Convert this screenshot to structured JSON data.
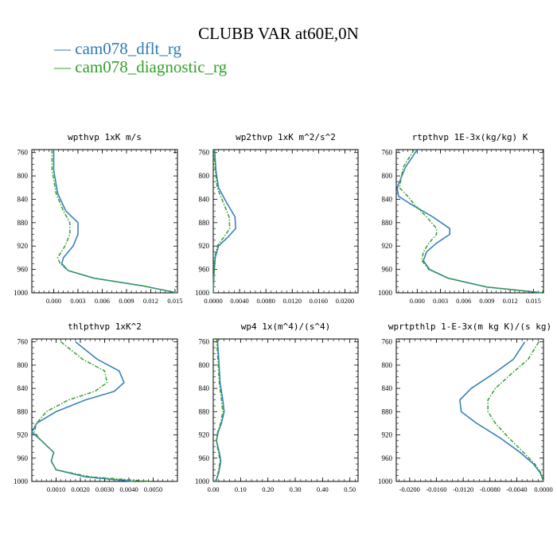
{
  "figure": {
    "title": "CLUBB VAR at60E,0N",
    "legend": [
      {
        "name": "cam078_dflt_rg",
        "color": "#2c7bb6"
      },
      {
        "name": "cam078_diagnostic_rg",
        "color": "#33a02c"
      }
    ]
  },
  "chart_data": [
    {
      "type": "line",
      "title": "wpthvp  1xK m/s",
      "xlim": [
        -0.0027,
        0.0153
      ],
      "xticks": [
        "0.000",
        "0.003",
        "0.006",
        "0.009",
        "0.012",
        "0.015"
      ],
      "xtick_values": [
        0,
        0.003,
        0.006,
        0.009,
        0.012,
        0.015
      ],
      "ylim": [
        1000,
        755
      ],
      "yticks": [
        "760",
        "800",
        "840",
        "880",
        "920",
        "960",
        "1000"
      ],
      "ytick_values": [
        760,
        800,
        840,
        880,
        920,
        960,
        1000
      ],
      "series": [
        {
          "name": "cam078_dflt_rg",
          "x": [
            0.0,
            0.0,
            0.0005,
            0.0015,
            0.003,
            0.003,
            0.0024,
            0.0012,
            0.001,
            0.0018,
            0.005,
            0.011,
            0.0152
          ],
          "y": [
            755,
            790,
            830,
            860,
            880,
            900,
            920,
            940,
            950,
            962,
            975,
            988,
            1000
          ]
        },
        {
          "name": "cam078_diagnostic_rg",
          "x": [
            -0.0002,
            -0.0002,
            0.0003,
            0.0012,
            0.002,
            0.002,
            0.0014,
            0.0005,
            0.0008,
            0.0018,
            0.005,
            0.011,
            0.0152
          ],
          "y": [
            755,
            790,
            830,
            860,
            880,
            900,
            920,
            940,
            950,
            962,
            975,
            988,
            1000
          ]
        }
      ]
    },
    {
      "type": "line",
      "title": "wp2thvp  1xK m^2/s^2",
      "xlim": [
        0,
        0.022
      ],
      "xticks": [
        "0.0000",
        "0.0040",
        "0.0080",
        "0.0120",
        "0.0160",
        "0.0200"
      ],
      "xtick_values": [
        0,
        0.004,
        0.008,
        0.012,
        0.016,
        0.02
      ],
      "ylim": [
        1000,
        755
      ],
      "yticks": [
        "760",
        "800",
        "840",
        "880",
        "920",
        "960",
        "1000"
      ],
      "ytick_values": [
        760,
        800,
        840,
        880,
        920,
        960,
        1000
      ],
      "series": [
        {
          "name": "cam078_dflt_rg",
          "x": [
            0.0002,
            0.0004,
            0.0008,
            0.002,
            0.0033,
            0.0034,
            0.0022,
            0.0008,
            0.0003,
            0.0001,
            0.0
          ],
          "y": [
            755,
            790,
            820,
            845,
            870,
            890,
            905,
            920,
            940,
            970,
            1000
          ]
        },
        {
          "name": "cam078_diagnostic_rg",
          "x": [
            0.0001,
            0.0003,
            0.0006,
            0.0015,
            0.0024,
            0.0025,
            0.0016,
            0.0006,
            0.0002,
            0.0001,
            0.0
          ],
          "y": [
            755,
            790,
            820,
            845,
            870,
            890,
            905,
            920,
            940,
            970,
            1000
          ]
        }
      ]
    },
    {
      "type": "line",
      "title": "rtpthvp  1E-3x(kg/kg) K",
      "xlim": [
        -0.0027,
        0.0163
      ],
      "xticks": [
        "0.000",
        "0.003",
        "0.006",
        "0.009",
        "0.012",
        "0.015"
      ],
      "xtick_values": [
        0,
        0.003,
        0.006,
        0.009,
        0.012,
        0.015
      ],
      "ylim": [
        1000,
        755
      ],
      "yticks": [
        "760",
        "800",
        "840",
        "880",
        "920",
        "960",
        "1000"
      ],
      "ytick_values": [
        760,
        800,
        840,
        880,
        920,
        960,
        1000
      ],
      "series": [
        {
          "name": "cam078_dflt_rg",
          "x": [
            0.0,
            -0.0015,
            -0.0026,
            -0.0024,
            -0.0006,
            0.002,
            0.0042,
            0.0042,
            0.0025,
            0.0012,
            0.0008,
            0.0016,
            0.004,
            0.009,
            0.0162
          ],
          "y": [
            755,
            785,
            820,
            835,
            850,
            870,
            890,
            900,
            915,
            930,
            945,
            960,
            975,
            990,
            1000
          ]
        },
        {
          "name": "cam078_diagnostic_rg",
          "x": [
            -0.0004,
            -0.0018,
            -0.0023,
            -0.0012,
            -0.0003,
            0.0012,
            0.0025,
            0.0025,
            0.0015,
            0.0008,
            0.0006,
            0.0015,
            0.004,
            0.009,
            0.0162
          ],
          "y": [
            755,
            785,
            820,
            835,
            850,
            870,
            890,
            900,
            915,
            930,
            945,
            960,
            975,
            990,
            1000
          ]
        }
      ]
    },
    {
      "type": "line",
      "title": "thlpthvp  1xK^2",
      "xlim": [
        0,
        0.006
      ],
      "xticks": [
        "0.0010",
        "0.0020",
        "0.0030",
        "0.0040",
        "0.0050"
      ],
      "xtick_values": [
        0.001,
        0.002,
        0.003,
        0.004,
        0.005
      ],
      "ylim": [
        1000,
        755
      ],
      "yticks": [
        "760",
        "800",
        "840",
        "880",
        "920",
        "960",
        "1000"
      ],
      "ytick_values": [
        760,
        800,
        840,
        880,
        920,
        960,
        1000
      ],
      "series": [
        {
          "name": "cam078_dflt_rg",
          "x": [
            0.0018,
            0.0027,
            0.0036,
            0.0038,
            0.0034,
            0.0022,
            0.001,
            0.0002,
            0.0,
            0.0004,
            0.0009,
            0.0008,
            0.001,
            0.0022,
            0.0042
          ],
          "y": [
            760,
            790,
            810,
            830,
            845,
            860,
            880,
            900,
            915,
            930,
            950,
            965,
            980,
            992,
            1000
          ]
        },
        {
          "name": "cam078_diagnostic_rg",
          "x": [
            0.0012,
            0.0021,
            0.003,
            0.0031,
            0.0026,
            0.0015,
            0.0006,
            0.0002,
            0.0001,
            0.0004,
            0.0009,
            0.0008,
            0.001,
            0.0024,
            0.0049
          ],
          "y": [
            760,
            790,
            810,
            830,
            845,
            860,
            880,
            900,
            915,
            930,
            950,
            965,
            980,
            992,
            1000
          ]
        }
      ]
    },
    {
      "type": "line",
      "title": "wp4  1x(m^4)/(s^4)",
      "xlim": [
        0,
        0.53
      ],
      "xticks": [
        "0.00",
        "0.10",
        "0.20",
        "0.30",
        "0.40",
        "0.50"
      ],
      "xtick_values": [
        0,
        0.1,
        0.2,
        0.3,
        0.4,
        0.5
      ],
      "ylim": [
        1000,
        755
      ],
      "yticks": [
        "760",
        "800",
        "840",
        "880",
        "920",
        "960",
        "1000"
      ],
      "ytick_values": [
        760,
        800,
        840,
        880,
        920,
        960,
        1000
      ],
      "series": [
        {
          "name": "cam078_dflt_rg",
          "x": [
            0.015,
            0.02,
            0.025,
            0.035,
            0.04,
            0.03,
            0.018,
            0.012,
            0.022,
            0.028,
            0.02,
            0.01
          ],
          "y": [
            755,
            790,
            830,
            860,
            880,
            900,
            915,
            930,
            950,
            965,
            985,
            1000
          ]
        },
        {
          "name": "cam078_diagnostic_rg",
          "x": [
            0.012,
            0.017,
            0.022,
            0.03,
            0.035,
            0.027,
            0.016,
            0.011,
            0.019,
            0.025,
            0.018,
            0.008
          ],
          "y": [
            755,
            790,
            830,
            860,
            880,
            900,
            915,
            930,
            950,
            965,
            985,
            1000
          ]
        }
      ]
    },
    {
      "type": "line",
      "title": "wprtpthlp  1-E-3x(m kg K)/(s kg)",
      "xlim": [
        -0.022,
        0.0
      ],
      "xticks": [
        "-0.0200",
        "-0.0160",
        "-0.0120",
        "-0.0080",
        "-0.0040",
        "0.0000"
      ],
      "xtick_values": [
        -0.02,
        -0.016,
        -0.012,
        -0.008,
        -0.004,
        0.0
      ],
      "ylim": [
        1000,
        755
      ],
      "yticks": [
        "760",
        "800",
        "840",
        "880",
        "920",
        "960",
        "1000"
      ],
      "ytick_values": [
        760,
        800,
        840,
        880,
        920,
        960,
        1000
      ],
      "series": [
        {
          "name": "cam078_dflt_rg",
          "x": [
            -0.0028,
            -0.0045,
            -0.0075,
            -0.0108,
            -0.0125,
            -0.0123,
            -0.01,
            -0.0065,
            -0.0035,
            -0.0015,
            -0.0005,
            0.0
          ],
          "y": [
            760,
            790,
            815,
            840,
            860,
            880,
            900,
            925,
            950,
            970,
            985,
            1000
          ]
        },
        {
          "name": "cam078_diagnostic_rg",
          "x": [
            -0.0007,
            -0.0023,
            -0.0048,
            -0.0072,
            -0.0083,
            -0.0083,
            -0.0072,
            -0.0052,
            -0.003,
            -0.0013,
            -0.0004,
            0.0
          ],
          "y": [
            760,
            790,
            815,
            840,
            860,
            880,
            900,
            925,
            950,
            970,
            985,
            1000
          ]
        }
      ]
    }
  ]
}
